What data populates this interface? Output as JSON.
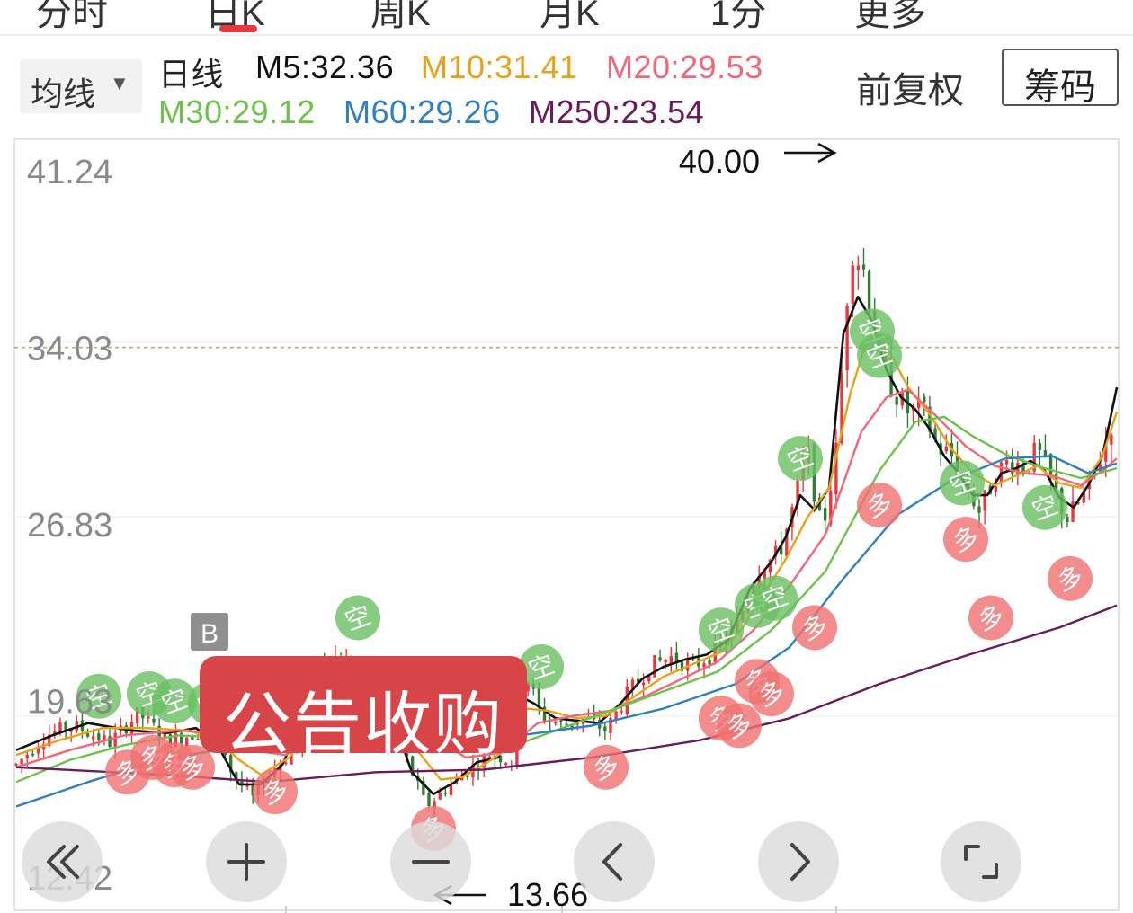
{
  "top_tabs": [
    "分时",
    "日K",
    "周K",
    "月K",
    "1分",
    "更多"
  ],
  "toolbar": {
    "ma_selector": {
      "label": "均线",
      "caret": "▼"
    },
    "adjust_label": "前复权",
    "chip_button_label": "筹码"
  },
  "legend": {
    "period": "日线",
    "ma5": "M5:32.36",
    "ma10": "M10:31.41",
    "ma20": "M20:29.53",
    "ma30": "M30:29.12",
    "ma60": "M60:29.26",
    "ma250": "M250:23.54"
  },
  "colors": {
    "up": "#e8383d",
    "down": "#2f7d32",
    "ma5": "#111111",
    "ma10": "#e8a21a",
    "ma20": "#f06878",
    "ma30": "#6cc24a",
    "ma60": "#2f7fc1",
    "ma250": "#6b1a5e",
    "buy_marker": "#f07070",
    "sell_marker": "#6abf63",
    "announce_bg": "#d84549"
  },
  "announcement": "公告收购",
  "b_marker_label": "B",
  "nav_buttons": [
    {
      "name": "fast-rewind-icon"
    },
    {
      "name": "zoom-in-icon"
    },
    {
      "name": "zoom-out-icon"
    },
    {
      "name": "chevron-left-icon"
    },
    {
      "name": "chevron-right-icon"
    },
    {
      "name": "fullscreen-icon"
    }
  ],
  "chart_data": {
    "type": "candlestick",
    "period": "daily",
    "y_ticks": [
      "41.24",
      "34.03",
      "26.83",
      "19.63",
      "12.42"
    ],
    "ylim": [
      12.42,
      41.24
    ],
    "reference_price": 34.03,
    "high_annotation": "40.00",
    "low_annotation": "13.66",
    "marker_labels": {
      "buy": "多",
      "sell": "空"
    },
    "candle_count": 200,
    "waypoints": [
      [
        0,
        17.0
      ],
      [
        8,
        18.2
      ],
      [
        16,
        18.6
      ],
      [
        26,
        17.9
      ],
      [
        34,
        19.1
      ],
      [
        42,
        18.0
      ],
      [
        50,
        18.3
      ],
      [
        56,
        18.6
      ],
      [
        60,
        16.6
      ],
      [
        66,
        15.6
      ],
      [
        72,
        16.9
      ],
      [
        78,
        17.7
      ],
      [
        84,
        21.3
      ],
      [
        90,
        21.4
      ],
      [
        96,
        20.5
      ],
      [
        102,
        20.0
      ],
      [
        108,
        17.4
      ],
      [
        114,
        15.3
      ],
      [
        120,
        16.1
      ],
      [
        126,
        16.8
      ],
      [
        132,
        17.5
      ],
      [
        138,
        17.1
      ],
      [
        140,
        20.2
      ],
      [
        142,
        20.6
      ],
      [
        146,
        19.0
      ],
      [
        152,
        18.6
      ],
      [
        158,
        18.9
      ],
      [
        164,
        18.4
      ],
      [
        170,
        19.9
      ],
      [
        176,
        21.0
      ],
      [
        182,
        21.4
      ],
      [
        188,
        21.0
      ],
      [
        194,
        21.6
      ],
      [
        200,
        22.5
      ],
      [
        206,
        25.0
      ],
      [
        212,
        25.6
      ],
      [
        216,
        27.5
      ],
      [
        220,
        29.8
      ],
      [
        224,
        26.4
      ],
      [
        228,
        29.8
      ],
      [
        232,
        38.2
      ],
      [
        236,
        37.1
      ],
      [
        240,
        33.5
      ],
      [
        244,
        32.3
      ],
      [
        248,
        31.4
      ],
      [
        252,
        31.5
      ],
      [
        256,
        30.0
      ],
      [
        260,
        29.6
      ],
      [
        264,
        28.4
      ],
      [
        268,
        27.3
      ],
      [
        272,
        28.8
      ],
      [
        276,
        29.4
      ],
      [
        280,
        29.2
      ],
      [
        284,
        29.8
      ],
      [
        288,
        28.5
      ],
      [
        292,
        27.0
      ],
      [
        296,
        27.8
      ],
      [
        300,
        29.0
      ],
      [
        304,
        30.5
      ],
      [
        306,
        32.4
      ]
    ],
    "ma_series": [
      {
        "name": "M5",
        "points": [
          [
            0,
            17.6
          ],
          [
            10,
            18.2
          ],
          [
            20,
            18.7
          ],
          [
            32,
            18.4
          ],
          [
            42,
            18.3
          ],
          [
            50,
            18.5
          ],
          [
            56,
            17.8
          ],
          [
            62,
            16.2
          ],
          [
            68,
            16.2
          ],
          [
            74,
            17.0
          ],
          [
            80,
            19.0
          ],
          [
            86,
            20.8
          ],
          [
            92,
            21.0
          ],
          [
            98,
            20.4
          ],
          [
            104,
            19.2
          ],
          [
            110,
            16.7
          ],
          [
            116,
            15.8
          ],
          [
            122,
            16.3
          ],
          [
            128,
            17.1
          ],
          [
            134,
            17.3
          ],
          [
            140,
            19.8
          ],
          [
            144,
            19.5
          ],
          [
            150,
            18.9
          ],
          [
            156,
            18.8
          ],
          [
            162,
            18.7
          ],
          [
            168,
            19.5
          ],
          [
            174,
            20.5
          ],
          [
            180,
            21.0
          ],
          [
            186,
            21.3
          ],
          [
            192,
            21.5
          ],
          [
            198,
            22.1
          ],
          [
            204,
            24.2
          ],
          [
            210,
            25.3
          ],
          [
            214,
            26.3
          ],
          [
            218,
            28.0
          ],
          [
            222,
            27.4
          ],
          [
            226,
            28.3
          ],
          [
            230,
            34.6
          ],
          [
            234,
            36.1
          ],
          [
            238,
            35.1
          ],
          [
            242,
            33.1
          ],
          [
            246,
            32.0
          ],
          [
            250,
            31.5
          ],
          [
            254,
            30.7
          ],
          [
            258,
            29.6
          ],
          [
            262,
            28.9
          ],
          [
            266,
            28.0
          ],
          [
            270,
            28.0
          ],
          [
            274,
            28.9
          ],
          [
            278,
            29.1
          ],
          [
            282,
            29.4
          ],
          [
            286,
            29.0
          ],
          [
            290,
            27.9
          ],
          [
            294,
            27.5
          ],
          [
            298,
            28.4
          ],
          [
            302,
            29.6
          ],
          [
            306,
            32.4
          ]
        ]
      },
      {
        "name": "M10",
        "points": [
          [
            0,
            17.4
          ],
          [
            12,
            18.0
          ],
          [
            24,
            18.5
          ],
          [
            36,
            18.5
          ],
          [
            48,
            18.4
          ],
          [
            56,
            18.0
          ],
          [
            62,
            17.2
          ],
          [
            68,
            16.6
          ],
          [
            76,
            17.3
          ],
          [
            84,
            19.3
          ],
          [
            92,
            20.5
          ],
          [
            100,
            20.5
          ],
          [
            106,
            19.2
          ],
          [
            112,
            17.5
          ],
          [
            118,
            16.4
          ],
          [
            124,
            16.5
          ],
          [
            130,
            17.0
          ],
          [
            136,
            17.6
          ],
          [
            142,
            19.3
          ],
          [
            148,
            19.2
          ],
          [
            156,
            18.9
          ],
          [
            164,
            19.0
          ],
          [
            172,
            19.8
          ],
          [
            180,
            20.6
          ],
          [
            188,
            21.1
          ],
          [
            196,
            21.6
          ],
          [
            202,
            22.6
          ],
          [
            208,
            24.0
          ],
          [
            214,
            25.4
          ],
          [
            220,
            27.1
          ],
          [
            226,
            28.3
          ],
          [
            232,
            32.2
          ],
          [
            236,
            34.1
          ],
          [
            240,
            34.5
          ],
          [
            244,
            33.5
          ],
          [
            248,
            32.4
          ],
          [
            254,
            31.3
          ],
          [
            260,
            29.9
          ],
          [
            266,
            28.9
          ],
          [
            272,
            28.4
          ],
          [
            278,
            28.8
          ],
          [
            284,
            29.2
          ],
          [
            290,
            28.5
          ],
          [
            296,
            28.3
          ],
          [
            302,
            29.6
          ],
          [
            306,
            31.4
          ]
        ]
      },
      {
        "name": "M20",
        "points": [
          [
            0,
            16.9
          ],
          [
            15,
            17.6
          ],
          [
            30,
            18.2
          ],
          [
            45,
            18.4
          ],
          [
            55,
            18.3
          ],
          [
            65,
            17.6
          ],
          [
            75,
            17.4
          ],
          [
            85,
            18.4
          ],
          [
            95,
            19.7
          ],
          [
            105,
            19.6
          ],
          [
            115,
            18.2
          ],
          [
            125,
            17.3
          ],
          [
            135,
            17.5
          ],
          [
            145,
            18.7
          ],
          [
            155,
            19.0
          ],
          [
            165,
            19.2
          ],
          [
            175,
            19.8
          ],
          [
            185,
            20.5
          ],
          [
            195,
            21.2
          ],
          [
            205,
            22.5
          ],
          [
            215,
            24.3
          ],
          [
            225,
            26.4
          ],
          [
            235,
            30.6
          ],
          [
            242,
            32.0
          ],
          [
            248,
            32.3
          ],
          [
            256,
            31.2
          ],
          [
            264,
            30.0
          ],
          [
            272,
            29.2
          ],
          [
            280,
            28.9
          ],
          [
            288,
            28.8
          ],
          [
            296,
            28.4
          ],
          [
            302,
            29.0
          ],
          [
            306,
            29.5
          ]
        ]
      },
      {
        "name": "M30",
        "points": [
          [
            0,
            16.3
          ],
          [
            15,
            17.2
          ],
          [
            30,
            17.8
          ],
          [
            45,
            18.2
          ],
          [
            60,
            18.1
          ],
          [
            75,
            17.6
          ],
          [
            90,
            18.5
          ],
          [
            105,
            19.0
          ],
          [
            120,
            18.0
          ],
          [
            135,
            17.6
          ],
          [
            150,
            18.4
          ],
          [
            165,
            19.2
          ],
          [
            180,
            20.0
          ],
          [
            195,
            20.8
          ],
          [
            210,
            22.5
          ],
          [
            225,
            24.9
          ],
          [
            240,
            29.0
          ],
          [
            250,
            31.0
          ],
          [
            258,
            31.2
          ],
          [
            266,
            30.4
          ],
          [
            276,
            29.6
          ],
          [
            286,
            29.1
          ],
          [
            296,
            28.7
          ],
          [
            306,
            29.1
          ]
        ]
      },
      {
        "name": "M60",
        "points": [
          [
            0,
            15.3
          ],
          [
            20,
            16.3
          ],
          [
            40,
            17.2
          ],
          [
            60,
            17.7
          ],
          [
            80,
            18.0
          ],
          [
            100,
            18.3
          ],
          [
            120,
            18.3
          ],
          [
            140,
            18.2
          ],
          [
            160,
            18.6
          ],
          [
            180,
            19.3
          ],
          [
            200,
            20.3
          ],
          [
            215,
            21.8
          ],
          [
            230,
            24.6
          ],
          [
            245,
            27.2
          ],
          [
            260,
            28.6
          ],
          [
            275,
            29.5
          ],
          [
            288,
            29.6
          ],
          [
            298,
            28.9
          ],
          [
            306,
            29.3
          ]
        ]
      },
      {
        "name": "M250",
        "points": [
          [
            0,
            16.9
          ],
          [
            40,
            16.6
          ],
          [
            70,
            16.3
          ],
          [
            100,
            16.7
          ],
          [
            130,
            16.8
          ],
          [
            160,
            17.3
          ],
          [
            190,
            18.0
          ],
          [
            215,
            18.9
          ],
          [
            240,
            20.3
          ],
          [
            265,
            21.5
          ],
          [
            290,
            22.6
          ],
          [
            306,
            23.5
          ]
        ]
      }
    ],
    "markers": [
      {
        "kind": "buy",
        "x": 31,
        "price": 16.7
      },
      {
        "kind": "buy",
        "x": 38,
        "price": 17.3
      },
      {
        "kind": "buy",
        "x": 44,
        "price": 17.0
      },
      {
        "kind": "buy",
        "x": 49,
        "price": 16.9
      },
      {
        "kind": "buy",
        "x": 72,
        "price": 15.9
      },
      {
        "kind": "buy",
        "x": 116,
        "price": 14.4
      },
      {
        "kind": "buy",
        "x": 164,
        "price": 16.9
      },
      {
        "kind": "buy",
        "x": 196,
        "price": 18.9
      },
      {
        "kind": "buy",
        "x": 201,
        "price": 18.6
      },
      {
        "kind": "buy",
        "x": 206,
        "price": 20.4
      },
      {
        "kind": "buy",
        "x": 210,
        "price": 19.9
      },
      {
        "kind": "buy",
        "x": 222,
        "price": 22.6
      },
      {
        "kind": "buy",
        "x": 240,
        "price": 27.6
      },
      {
        "kind": "buy",
        "x": 264,
        "price": 26.2
      },
      {
        "kind": "buy",
        "x": 271,
        "price": 23.0
      },
      {
        "kind": "buy",
        "x": 293,
        "price": 24.6
      },
      {
        "kind": "sell",
        "x": 23,
        "price": 19.8
      },
      {
        "kind": "sell",
        "x": 37,
        "price": 19.9
      },
      {
        "kind": "sell",
        "x": 44,
        "price": 19.6
      },
      {
        "kind": "sell",
        "x": 54,
        "price": 19.5
      },
      {
        "kind": "sell",
        "x": 95,
        "price": 23.0
      },
      {
        "kind": "sell",
        "x": 146,
        "price": 21.0
      },
      {
        "kind": "sell",
        "x": 196,
        "price": 22.5
      },
      {
        "kind": "sell",
        "x": 206,
        "price": 23.5
      },
      {
        "kind": "sell",
        "x": 211,
        "price": 23.8
      },
      {
        "kind": "sell",
        "x": 218,
        "price": 29.5
      },
      {
        "kind": "sell",
        "x": 238,
        "price": 34.7
      },
      {
        "kind": "sell",
        "x": 240,
        "price": 33.7
      },
      {
        "kind": "sell",
        "x": 263,
        "price": 28.5
      },
      {
        "kind": "sell",
        "x": 286,
        "price": 27.5
      }
    ]
  }
}
